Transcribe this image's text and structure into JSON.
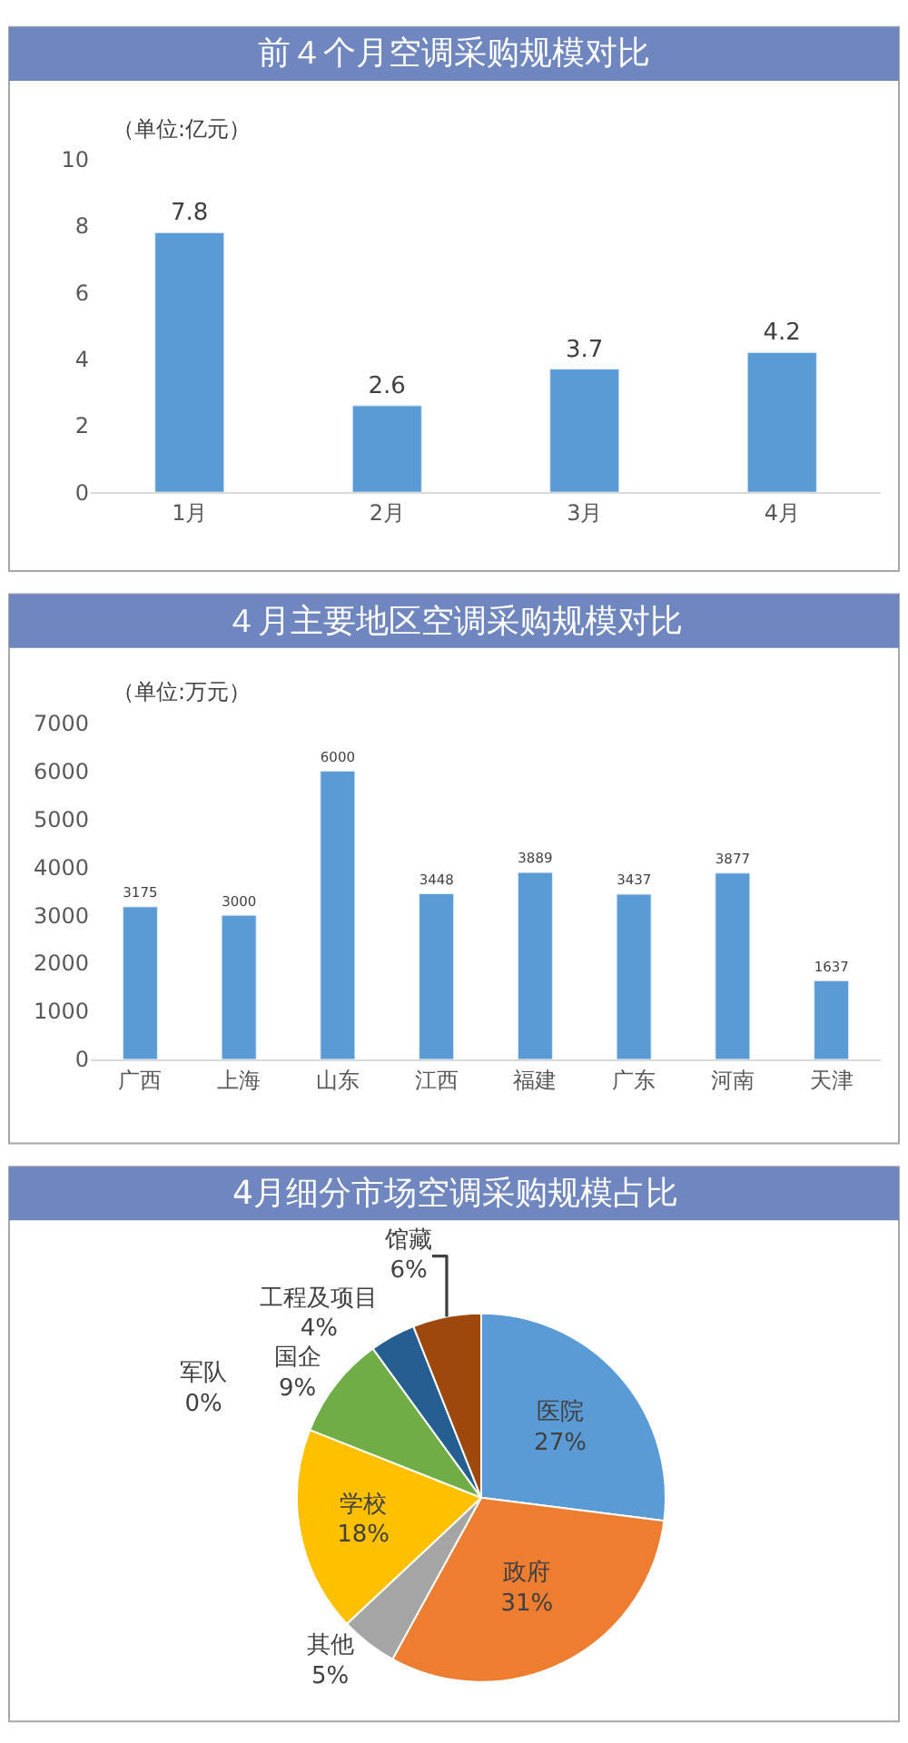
{
  "chart_data": [
    {
      "type": "bar",
      "title": "前４个月空调采购规模对比",
      "ylabel": "（单位:亿元）",
      "categories": [
        "1月",
        "2月",
        "3月",
        "4月"
      ],
      "values": [
        7.8,
        2.6,
        3.7,
        4.2
      ],
      "color": "#5b9bd5",
      "ylim": [
        0,
        10
      ],
      "yticks": [
        0,
        2,
        4,
        6,
        8,
        10
      ],
      "data_labels": true
    },
    {
      "type": "bar",
      "title": "４月主要地区空调采购规模对比",
      "ylabel": "（单位:万元）",
      "categories": [
        "广西",
        "上海",
        "山东",
        "江西",
        "福建",
        "广东",
        "河南",
        "天津"
      ],
      "values": [
        3175,
        3000,
        6000,
        3448,
        3889,
        3437,
        3877,
        1637
      ],
      "color": "#5b9bd5",
      "ylim": [
        0,
        7000
      ],
      "yticks": [
        0,
        1000,
        2000,
        3000,
        4000,
        5000,
        6000,
        7000
      ],
      "data_labels": true
    },
    {
      "type": "pie",
      "title": "4月细分市场空调采购规模占比",
      "categories": [
        "医院",
        "政府",
        "其他",
        "学校",
        "军队",
        "国企",
        "工程及项目",
        "馆藏"
      ],
      "values": [
        27,
        31,
        5,
        18,
        0,
        9,
        4,
        6
      ],
      "value_labels": [
        "27%",
        "31%",
        "5%",
        "18%",
        "0%",
        "9%",
        "4%",
        "6%"
      ],
      "colors": [
        "#5b9bd5",
        "#ed7d31",
        "#a5a5a5",
        "#ffc000",
        "#4472c4",
        "#70ad47",
        "#255e91",
        "#9e480e"
      ]
    }
  ]
}
